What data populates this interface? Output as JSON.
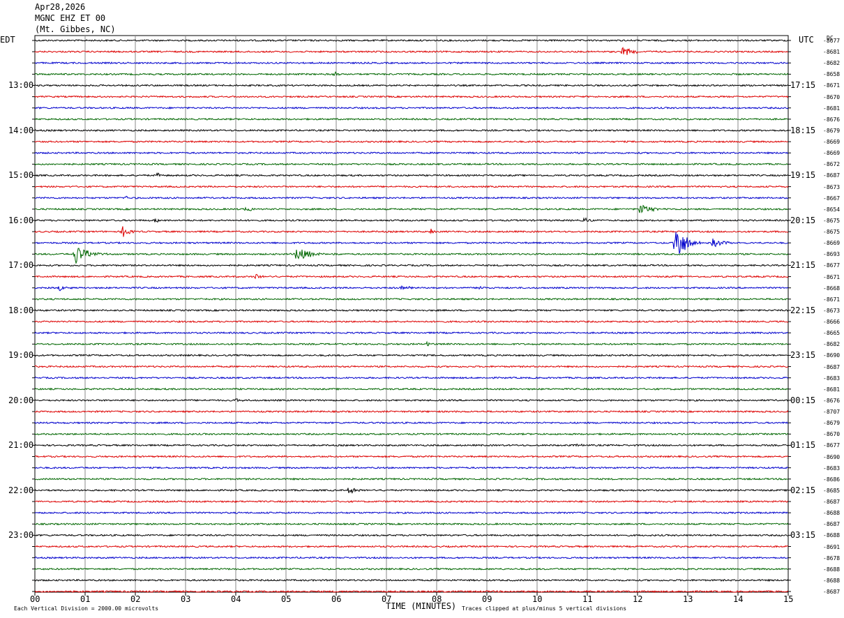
{
  "header": {
    "date": "Apr28,2026",
    "station": "MGNC EHZ ET 00",
    "location": "(Mt. Gibbes, NC)"
  },
  "left_zone": "EDT",
  "right_zone": "UTC",
  "dc_label": "DC",
  "chart_data": {
    "type": "line",
    "title": "",
    "xlabel": "TIME (MINUTES)",
    "xlim": [
      0,
      15
    ],
    "x_ticks": [
      "00",
      "01",
      "02",
      "03",
      "04",
      "05",
      "06",
      "07",
      "08",
      "09",
      "10",
      "11",
      "12",
      "13",
      "14",
      "15"
    ],
    "trace_colors": [
      "#000000",
      "#dd0000",
      "#0000cc",
      "#006600"
    ],
    "left_hour_labels": [
      "13:00",
      "14:00",
      "15:00",
      "16:00",
      "17:00",
      "18:00",
      "19:00",
      "20:00",
      "21:00",
      "22:00",
      "23:00"
    ],
    "right_hour_labels": [
      "17:15",
      "18:15",
      "19:15",
      "20:15",
      "21:15",
      "22:15",
      "23:15",
      "00:15",
      "01:15",
      "02:15",
      "03:15"
    ],
    "dc_offsets": [
      "8677",
      "8681",
      "8682",
      "8658",
      "8671",
      "8670",
      "8681",
      "8676",
      "8679",
      "8669",
      "8669",
      "8672",
      "8687",
      "8673",
      "8667",
      "8654",
      "8675",
      "8675",
      "8669",
      "8693",
      "8677",
      "8671",
      "8668",
      "8671",
      "8673",
      "8666",
      "8665",
      "8682",
      "8690",
      "8687",
      "8683",
      "8681",
      "8676",
      "8707",
      "8679",
      "8670",
      "8677",
      "8690",
      "8683",
      "8686",
      "8685",
      "8687",
      "8688",
      "8687",
      "8688",
      "8691",
      "8678",
      "8688",
      "8688",
      "8687"
    ],
    "events": [
      {
        "row": 1,
        "minute": 11.7,
        "amp": 6,
        "dur": 0.45
      },
      {
        "row": 3,
        "minute": 5.95,
        "amp": 4,
        "dur": 0.2
      },
      {
        "row": 12,
        "minute": 2.45,
        "amp": 4,
        "dur": 0.12
      },
      {
        "row": 14,
        "minute": 1.8,
        "amp": 3,
        "dur": 0.15
      },
      {
        "row": 15,
        "minute": 4.2,
        "amp": 4,
        "dur": 0.35
      },
      {
        "row": 15,
        "minute": 12.05,
        "amp": 8,
        "dur": 0.4
      },
      {
        "row": 16,
        "minute": 2.4,
        "amp": 3,
        "dur": 0.15
      },
      {
        "row": 16,
        "minute": 10.95,
        "amp": 5,
        "dur": 0.2
      },
      {
        "row": 17,
        "minute": 1.75,
        "amp": 9,
        "dur": 0.2
      },
      {
        "row": 17,
        "minute": 7.9,
        "amp": 6,
        "dur": 0.05
      },
      {
        "row": 18,
        "minute": 12.75,
        "amp": 38,
        "dur": 0.3
      },
      {
        "row": 18,
        "minute": 13.5,
        "amp": 6,
        "dur": 0.4
      },
      {
        "row": 19,
        "minute": 0.8,
        "amp": 16,
        "dur": 0.4
      },
      {
        "row": 19,
        "minute": 5.2,
        "amp": 11,
        "dur": 0.5
      },
      {
        "row": 21,
        "minute": 4.4,
        "amp": 4,
        "dur": 0.2
      },
      {
        "row": 22,
        "minute": 0.5,
        "amp": 4,
        "dur": 0.2
      },
      {
        "row": 22,
        "minute": 7.3,
        "amp": 3,
        "dur": 0.4
      },
      {
        "row": 22,
        "minute": 8.85,
        "amp": 3,
        "dur": 0.2
      },
      {
        "row": 27,
        "minute": 7.8,
        "amp": 4,
        "dur": 0.15
      },
      {
        "row": 32,
        "minute": 4.0,
        "amp": 3,
        "dur": 0.2
      },
      {
        "row": 36,
        "minute": 10.8,
        "amp": 3,
        "dur": 0.1
      },
      {
        "row": 40,
        "minute": 6.25,
        "amp": 5,
        "dur": 0.3
      },
      {
        "row": 41,
        "minute": 11.2,
        "amp": 3,
        "dur": 0.05
      }
    ]
  },
  "footer": {
    "scale": "Each Vertical Division = 2000.00 microvolts",
    "clip": "Traces clipped at plus/minus 5 vertical divisions"
  }
}
